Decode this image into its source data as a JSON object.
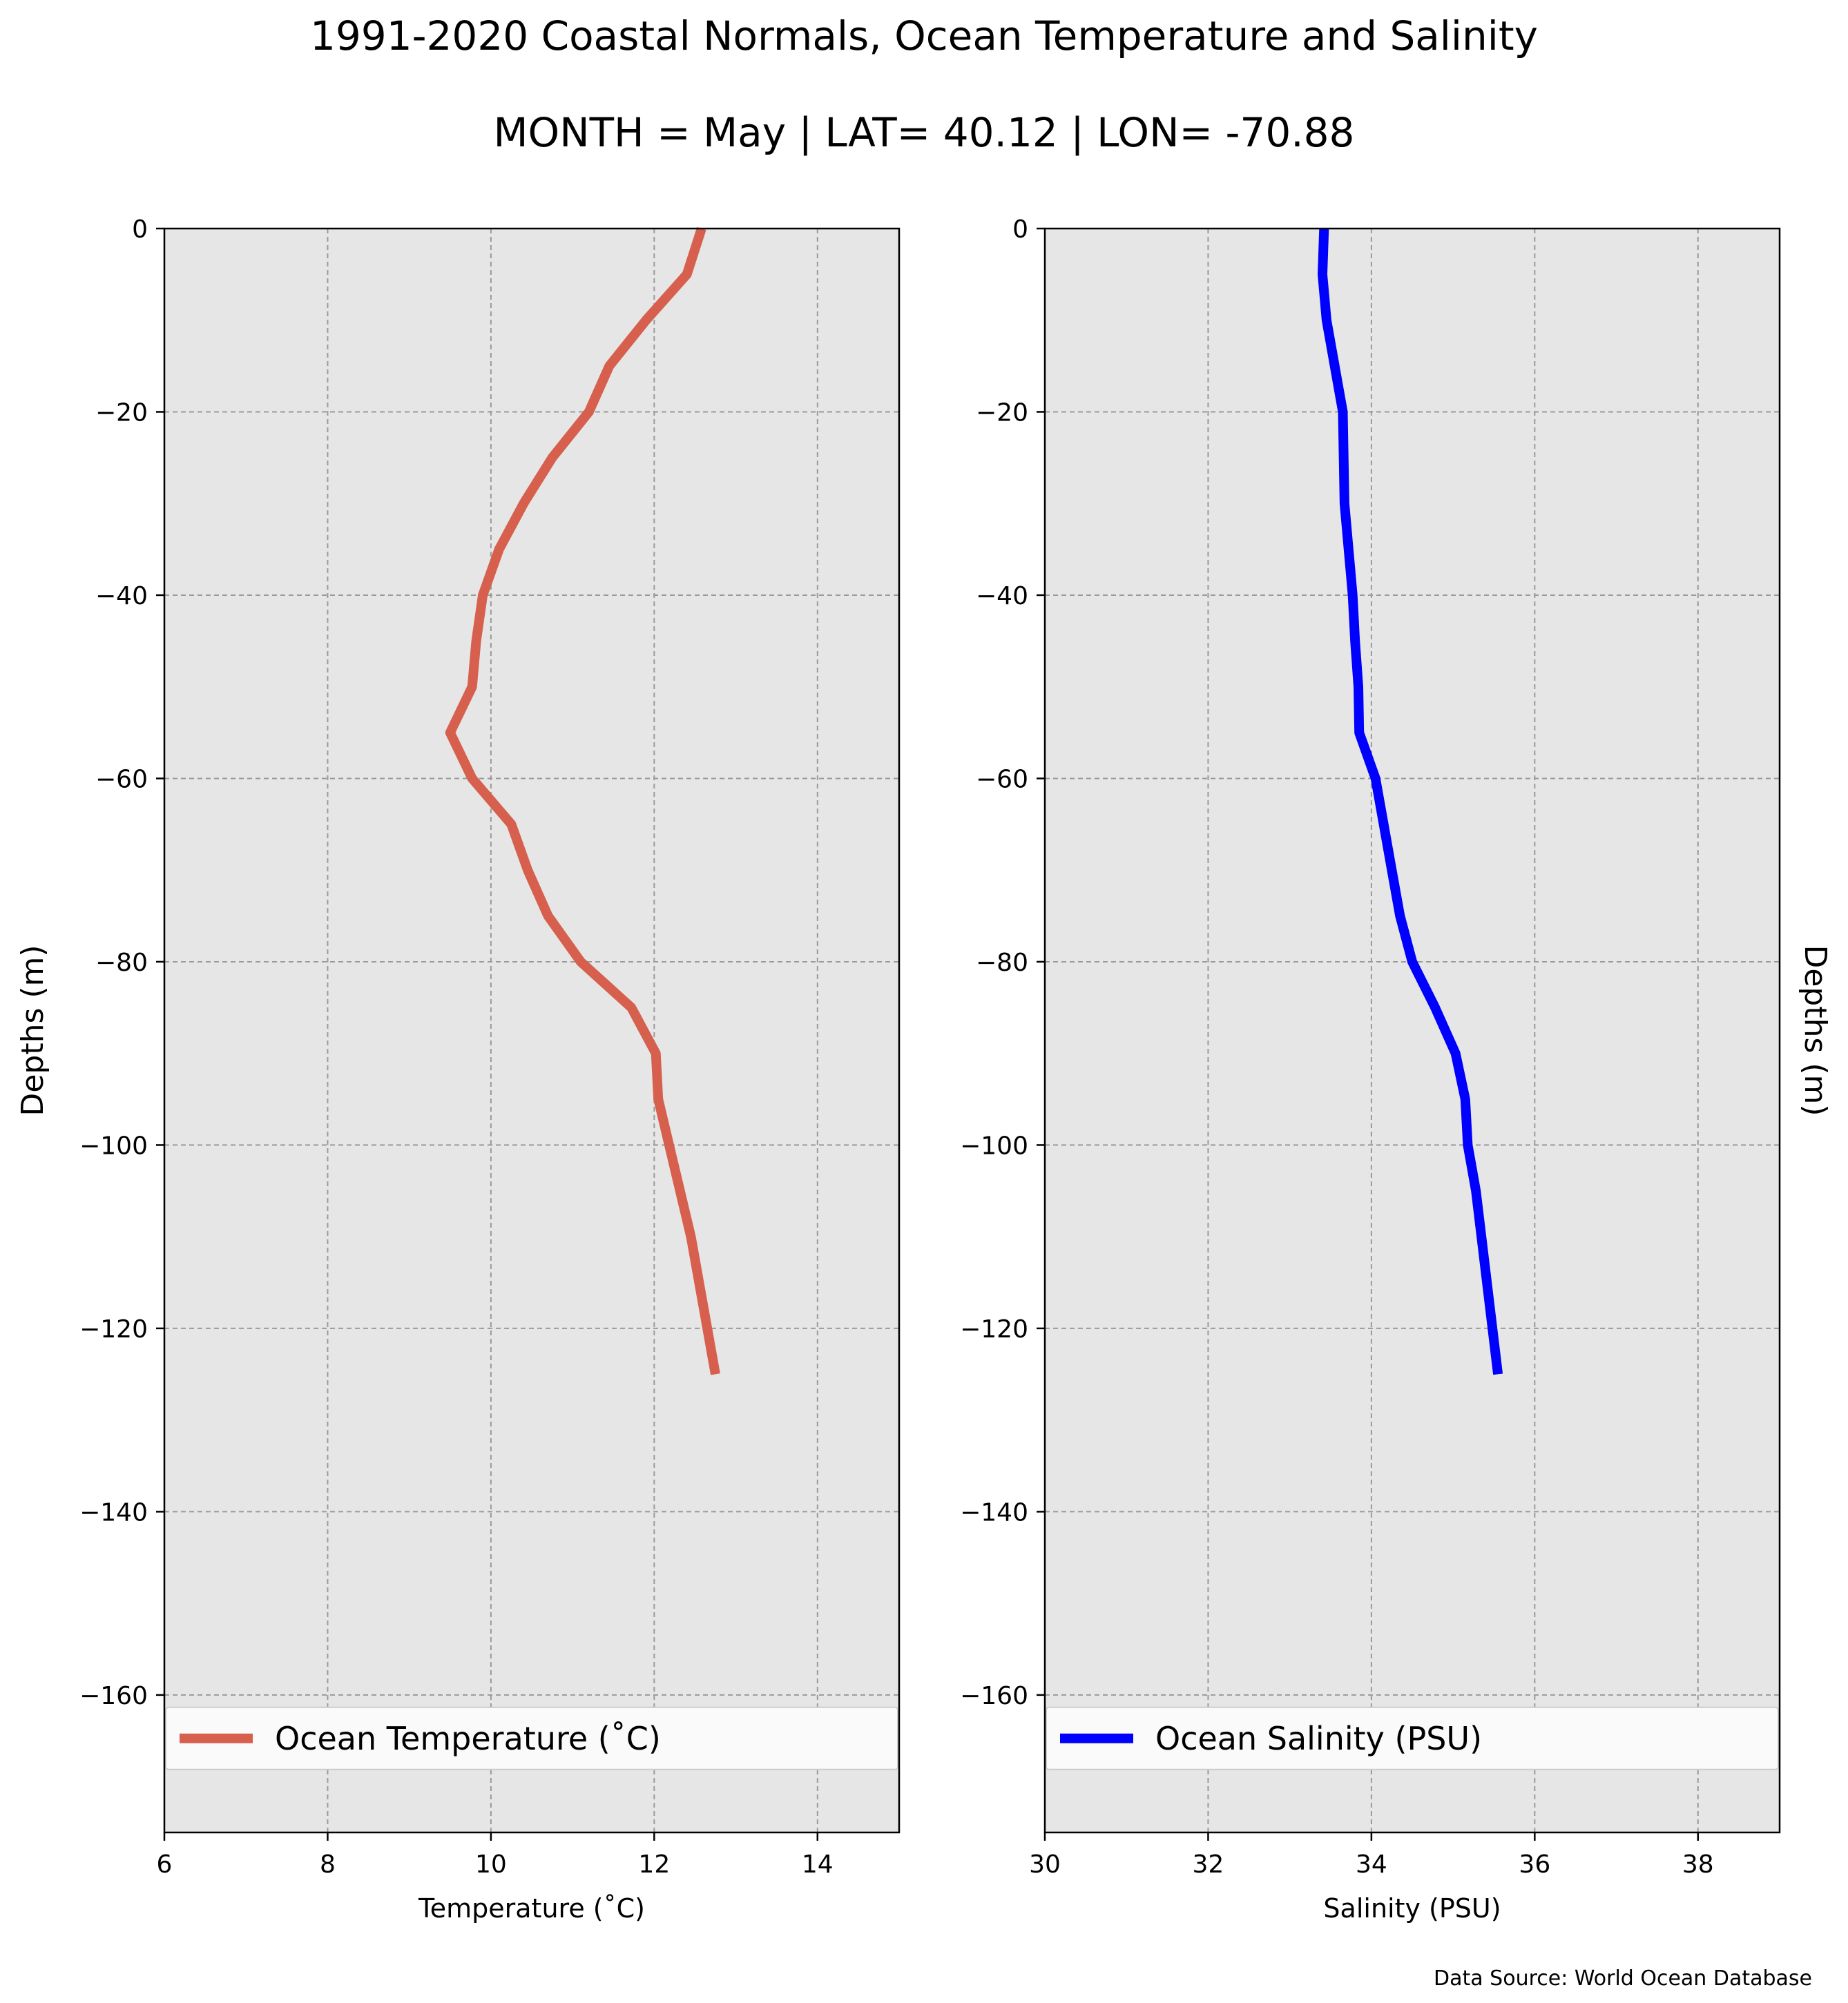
{
  "title": "1991-2020 Coastal Normals, Ocean Temperature and Salinity",
  "subtitle": "MONTH = May | LAT= 40.12 | LON= -70.88",
  "source_note": "Data Source: World Ocean Database",
  "chart_data": [
    {
      "type": "line",
      "xlabel": "Temperature (˚C)",
      "ylabel": "Depths (m)",
      "ylabel_side": "left",
      "xlim": [
        6,
        15
      ],
      "ylim": [
        -175,
        0
      ],
      "xticks": [
        6,
        8,
        10,
        12,
        14
      ],
      "xtick_labels": [
        "6",
        "8",
        "10",
        "12",
        "14"
      ],
      "yticks": [
        0,
        -20,
        -40,
        -60,
        -80,
        -100,
        -120,
        -140,
        -160
      ],
      "ytick_labels": [
        "0",
        "−20",
        "−40",
        "−60",
        "−80",
        "−100",
        "−120",
        "−140",
        "−160"
      ],
      "grid": true,
      "background": "#e6e6e6",
      "legend_position": "lower",
      "series": [
        {
          "name": "Ocean Temperature (˚C)",
          "color": "#d6604d",
          "x": [
            12.58,
            12.4,
            11.9,
            11.45,
            11.2,
            10.75,
            10.4,
            10.1,
            9.9,
            9.82,
            9.77,
            9.5,
            9.77,
            10.25,
            10.45,
            10.7,
            11.1,
            11.72,
            12.02,
            12.05,
            12.45,
            12.75
          ],
          "y": [
            0,
            -5,
            -10,
            -15,
            -20,
            -25,
            -30,
            -35,
            -40,
            -45,
            -50,
            -55,
            -60,
            -65,
            -70,
            -75,
            -80,
            -85,
            -90,
            -95,
            -110,
            -125
          ]
        }
      ]
    },
    {
      "type": "line",
      "xlabel": "Salinity (PSU)",
      "ylabel": "Depths (m)",
      "ylabel_side": "right",
      "xlim": [
        30,
        39
      ],
      "ylim": [
        -175,
        0
      ],
      "xticks": [
        30,
        32,
        34,
        36,
        38
      ],
      "xtick_labels": [
        "30",
        "32",
        "34",
        "36",
        "38"
      ],
      "yticks": [
        0,
        -20,
        -40,
        -60,
        -80,
        -100,
        -120,
        -140,
        -160
      ],
      "ytick_labels": [
        "0",
        "−20",
        "−40",
        "−60",
        "−80",
        "−100",
        "−120",
        "−140",
        "−160"
      ],
      "grid": true,
      "background": "#e6e6e6",
      "legend_position": "lower",
      "series": [
        {
          "name": "Ocean Salinity (PSU)",
          "color": "#0000ff",
          "x": [
            33.42,
            33.4,
            33.45,
            33.55,
            33.65,
            33.66,
            33.67,
            33.72,
            33.77,
            33.8,
            33.84,
            33.85,
            34.05,
            34.15,
            34.25,
            34.35,
            34.5,
            34.78,
            35.03,
            35.15,
            35.18,
            35.28,
            35.55
          ],
          "y": [
            0,
            -5,
            -10,
            -15,
            -20,
            -25,
            -30,
            -35,
            -40,
            -45,
            -50,
            -55,
            -60,
            -65,
            -70,
            -75,
            -80,
            -85,
            -90,
            -95,
            -100,
            -105,
            -125
          ]
        }
      ]
    }
  ]
}
